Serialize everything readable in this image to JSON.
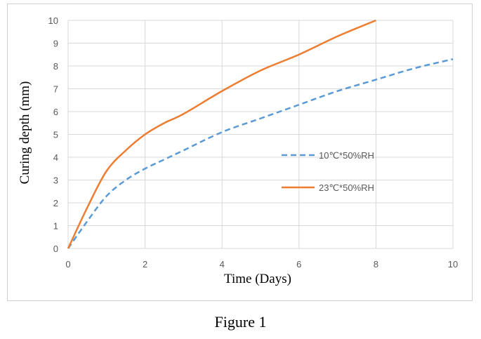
{
  "caption": "Figure 1",
  "colors": {
    "grid": "#d9d9d9",
    "series_10c": "#5b9bd5",
    "series_23c": "#ed7d31"
  },
  "chart_data": {
    "type": "line",
    "title": "",
    "xlabel": "Time (Days)",
    "ylabel": "Curing depth (mm)",
    "xlim": [
      0,
      10
    ],
    "ylim": [
      0,
      10
    ],
    "xticks": [
      0,
      2,
      4,
      6,
      8,
      10
    ],
    "yticks": [
      0,
      1,
      2,
      3,
      4,
      5,
      6,
      7,
      8,
      9,
      10
    ],
    "grid": true,
    "legend_position": "center-right",
    "series": [
      {
        "name": "10℃*50%RH",
        "style": "dashed",
        "color": "#5b9bd5",
        "x": [
          0,
          0.5,
          1,
          1.5,
          2,
          2.5,
          3,
          4,
          5,
          6,
          7,
          8,
          9,
          10
        ],
        "y": [
          0,
          1.2,
          2.3,
          3.0,
          3.5,
          3.9,
          4.3,
          5.1,
          5.7,
          6.3,
          6.9,
          7.4,
          7.9,
          8.3
        ]
      },
      {
        "name": "23℃*50%RH",
        "style": "solid",
        "color": "#ed7d31",
        "x": [
          0,
          0.5,
          1,
          1.5,
          2,
          2.5,
          3,
          4,
          5,
          6,
          7,
          8
        ],
        "y": [
          0,
          1.8,
          3.4,
          4.3,
          5.0,
          5.5,
          5.9,
          6.9,
          7.8,
          8.5,
          9.3,
          10.0
        ]
      }
    ]
  }
}
